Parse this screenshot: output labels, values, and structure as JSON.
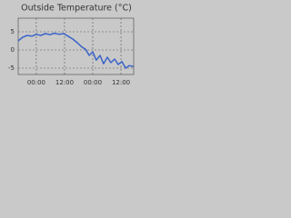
{
  "chart_data": {
    "type": "line",
    "title": "Outside Temperature (°C)",
    "x": [
      -7.7,
      -5.8,
      -3.9,
      -1.9,
      0,
      1.9,
      3.9,
      5.8,
      7.7,
      9.7,
      11.6,
      13.5,
      15.5,
      17.4,
      19.4,
      20.9,
      22.5,
      24,
      25.5,
      27.1,
      28.6,
      30.2,
      31.7,
      33.3,
      34.8,
      36.4,
      38,
      39.5,
      41.4
    ],
    "series": [
      {
        "name": "Outside Temperature",
        "color": "#3b63c8",
        "values": [
          2.5,
          3.5,
          4.0,
          3.8,
          4.3,
          4.0,
          4.5,
          4.2,
          4.6,
          4.3,
          4.5,
          3.8,
          3.0,
          2.0,
          0.8,
          0.2,
          -1.5,
          -0.5,
          -2.8,
          -1.5,
          -3.8,
          -2.0,
          -3.5,
          -2.5,
          -4.0,
          -3.2,
          -5.0,
          -4.3,
          -4.6
        ]
      }
    ],
    "xlim": [
      -7.7,
      41.4
    ],
    "xticks": [
      {
        "value": 0,
        "label": "00:00"
      },
      {
        "value": 12,
        "label": "12:00"
      },
      {
        "value": 24,
        "label": "00:00"
      },
      {
        "value": 36,
        "label": "12:00"
      }
    ],
    "ylim": [
      -6.75,
      8.75
    ],
    "yticks": [
      5,
      0,
      -5
    ],
    "grid": true
  }
}
